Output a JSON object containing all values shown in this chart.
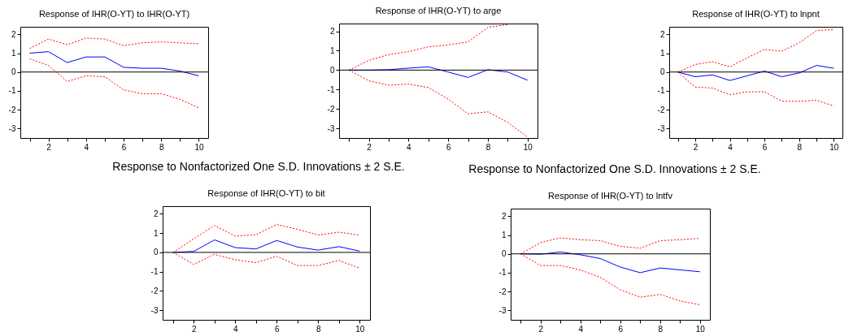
{
  "chart_data": [
    {
      "type": "line",
      "title": "Response of IHR(O-YT) to IHR(O-YT)",
      "x": [
        1,
        2,
        3,
        4,
        5,
        6,
        7,
        8,
        9,
        10
      ],
      "xlim": [
        0.5,
        10.5
      ],
      "ylim": [
        -3.5,
        2.4
      ],
      "xticks": [
        {
          "value": 1,
          "label": null
        },
        2,
        {
          "value": 3,
          "label": null
        },
        4,
        {
          "value": 5,
          "label": null
        },
        6,
        {
          "value": 7,
          "label": null
        },
        8,
        {
          "value": 9,
          "label": null
        },
        10
      ],
      "yticks": [
        -3,
        -2,
        -1,
        0,
        1,
        2
      ],
      "ref_lines": [
        {
          "axis": "y",
          "value": 0,
          "color": "#000000"
        }
      ],
      "series": [
        {
          "color": "#0000ff",
          "line_style": "solid",
          "values": [
            1.0,
            1.08,
            0.5,
            0.8,
            0.8,
            0.25,
            0.2,
            0.2,
            0.05,
            -0.2
          ]
        },
        {
          "color": "#ff0000",
          "line_style": "dotted",
          "values": [
            1.25,
            1.75,
            1.45,
            1.8,
            1.75,
            1.4,
            1.55,
            1.6,
            1.55,
            1.5
          ]
        },
        {
          "color": "#ff0000",
          "line_style": "dotted",
          "values": [
            0.7,
            0.35,
            -0.5,
            -0.2,
            -0.25,
            -0.95,
            -1.15,
            -1.15,
            -1.45,
            -1.9
          ]
        }
      ]
    },
    {
      "type": "line",
      "title": "Response of IHR(O-YT) to arge",
      "x": [
        1,
        2,
        3,
        4,
        5,
        6,
        7,
        8,
        9,
        10
      ],
      "xlim": [
        0.5,
        10.5
      ],
      "ylim": [
        -3.5,
        2.4
      ],
      "xticks": [
        {
          "value": 1,
          "label": null
        },
        2,
        {
          "value": 3,
          "label": null
        },
        4,
        {
          "value": 5,
          "label": null
        },
        6,
        {
          "value": 7,
          "label": null
        },
        8,
        {
          "value": 9,
          "label": null
        },
        10
      ],
      "yticks": [
        -3,
        -2,
        -1,
        0,
        1,
        2
      ],
      "ref_lines": [
        {
          "axis": "y",
          "value": 0,
          "color": "#000000"
        }
      ],
      "series": [
        {
          "color": "#0000ff",
          "line_style": "solid",
          "values": [
            0,
            0,
            0.02,
            0.1,
            0.17,
            -0.1,
            -0.38,
            0.02,
            -0.1,
            -0.52
          ]
        },
        {
          "color": "#ff0000",
          "line_style": "dotted",
          "values": [
            0,
            0.5,
            0.8,
            0.95,
            1.2,
            1.3,
            1.45,
            2.2,
            2.35,
            null
          ]
        },
        {
          "color": "#ff0000",
          "line_style": "dotted",
          "values": [
            0,
            -0.55,
            -0.78,
            -0.72,
            -0.9,
            -1.5,
            -2.25,
            -2.15,
            -2.7,
            -3.45
          ]
        }
      ]
    },
    {
      "type": "line",
      "title": "Response of IHR(O-YT) to lnpnt",
      "x": [
        1,
        2,
        3,
        4,
        5,
        6,
        7,
        8,
        9,
        10
      ],
      "xlim": [
        0.5,
        10.5
      ],
      "ylim": [
        -3.5,
        2.4
      ],
      "xticks": [
        {
          "value": 1,
          "label": null
        },
        2,
        {
          "value": 3,
          "label": null
        },
        4,
        {
          "value": 5,
          "label": null
        },
        6,
        {
          "value": 7,
          "label": null
        },
        8,
        {
          "value": 9,
          "label": null
        },
        10
      ],
      "yticks": [
        -3,
        -2,
        -1,
        0,
        1,
        2
      ],
      "ref_lines": [
        {
          "axis": "y",
          "value": 0,
          "color": "#000000"
        }
      ],
      "series": [
        {
          "color": "#0000ff",
          "line_style": "solid",
          "values": [
            0,
            -0.25,
            -0.15,
            -0.45,
            -0.2,
            0.05,
            -0.25,
            -0.05,
            0.35,
            0.2
          ]
        },
        {
          "color": "#ff0000",
          "line_style": "dotted",
          "values": [
            0,
            0.4,
            0.55,
            0.28,
            0.75,
            1.2,
            1.1,
            1.55,
            2.2,
            2.25
          ]
        },
        {
          "color": "#ff0000",
          "line_style": "dotted",
          "values": [
            0,
            -0.8,
            -0.85,
            -1.2,
            -1.05,
            -1.05,
            -1.55,
            -1.55,
            -1.5,
            -1.8
          ]
        }
      ]
    },
    {
      "type": "line",
      "title": "Response of IHR(O-YT) to bit",
      "annotations": [
        "Response to Nonfactorized One S.D. Innovations ± 2 S.E."
      ],
      "x": [
        1,
        2,
        3,
        4,
        5,
        6,
        7,
        8,
        9,
        10
      ],
      "xlim": [
        0.5,
        10.5
      ],
      "ylim": [
        -3.5,
        2.4
      ],
      "xticks": [
        {
          "value": 1,
          "label": null
        },
        2,
        {
          "value": 3,
          "label": null
        },
        4,
        {
          "value": 5,
          "label": null
        },
        6,
        {
          "value": 7,
          "label": null
        },
        8,
        {
          "value": 9,
          "label": null
        },
        10
      ],
      "yticks": [
        -3,
        -2,
        -1,
        0,
        1,
        2
      ],
      "ref_lines": [
        {
          "axis": "y",
          "value": 0,
          "color": "#000000"
        }
      ],
      "series": [
        {
          "color": "#0000ff",
          "line_style": "solid",
          "values": [
            0,
            0.05,
            0.65,
            0.25,
            0.18,
            0.62,
            0.28,
            0.12,
            0.3,
            0.07
          ]
        },
        {
          "color": "#ff0000",
          "line_style": "dotted",
          "values": [
            0,
            0.7,
            1.4,
            0.85,
            0.92,
            1.45,
            1.2,
            0.9,
            1.05,
            0.9
          ]
        },
        {
          "color": "#ff0000",
          "line_style": "dotted",
          "values": [
            0,
            -0.62,
            -0.1,
            -0.38,
            -0.53,
            -0.2,
            -0.68,
            -0.68,
            -0.42,
            -0.82
          ]
        }
      ]
    },
    {
      "type": "line",
      "title": "Response of IHR(O-YT) to lntfv",
      "annotations": [
        "Response to Nonfactorized One S.D. Innovations ± 2 S.E."
      ],
      "x": [
        1,
        2,
        3,
        4,
        5,
        6,
        7,
        8,
        9,
        10
      ],
      "xlim": [
        0.5,
        10.5
      ],
      "ylim": [
        -3.5,
        2.4
      ],
      "xticks": [
        {
          "value": 1,
          "label": null
        },
        2,
        {
          "value": 3,
          "label": null
        },
        4,
        {
          "value": 5,
          "label": null
        },
        6,
        {
          "value": 7,
          "label": null
        },
        8,
        {
          "value": 9,
          "label": null
        },
        10
      ],
      "yticks": [
        -3,
        -2,
        -1,
        0,
        1,
        2
      ],
      "ref_lines": [
        {
          "axis": "y",
          "value": 0,
          "color": "#000000"
        }
      ],
      "series": [
        {
          "color": "#0000ff",
          "line_style": "solid",
          "values": [
            0,
            -0.02,
            0.1,
            -0.05,
            -0.25,
            -0.7,
            -1.0,
            -0.75,
            -0.85,
            -0.95
          ]
        },
        {
          "color": "#ff0000",
          "line_style": "dotted",
          "values": [
            0,
            0.6,
            0.85,
            0.75,
            0.7,
            0.4,
            0.3,
            0.7,
            0.75,
            0.82
          ]
        },
        {
          "color": "#ff0000",
          "line_style": "dotted",
          "values": [
            0,
            -0.62,
            -0.62,
            -0.85,
            -1.25,
            -1.9,
            -2.3,
            -2.15,
            -2.5,
            -2.7
          ]
        }
      ]
    }
  ]
}
